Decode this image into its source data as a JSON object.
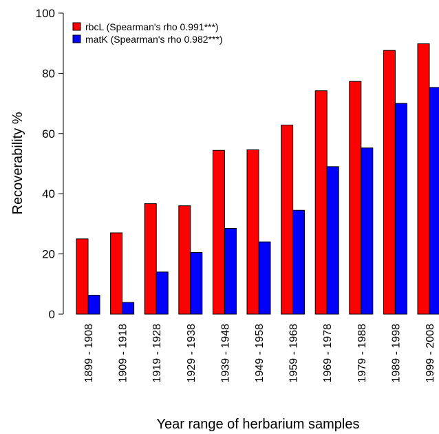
{
  "chart_data": {
    "type": "bar",
    "categories": [
      "1899 - 1908",
      "1909 - 1918",
      "1919 - 1928",
      "1929 - 1938",
      "1939 - 1948",
      "1949 - 1958",
      "1959 - 1968",
      "1969 - 1978",
      "1979 - 1988",
      "1989 - 1998",
      "1999 - 2008"
    ],
    "series": [
      {
        "name": "rbcL (Spearman's rho 0.991***)",
        "color": "#ff0000",
        "values": [
          25,
          27,
          36.7,
          36,
          54.4,
          54.6,
          62.8,
          74.2,
          77.3,
          87.6,
          89.8
        ]
      },
      {
        "name": "matK (Spearman's rho 0.982***)",
        "color": "#0000ff",
        "values": [
          6.3,
          3.9,
          14,
          20.5,
          28.5,
          24,
          34.5,
          49,
          55.2,
          70,
          75.3
        ]
      }
    ],
    "x_label": "Year range of herbarium samples",
    "y_label": "Recoverability %",
    "ylim": [
      0,
      100
    ],
    "yticks": [
      0,
      20,
      40,
      60,
      80,
      100
    ],
    "legend": "top-left"
  }
}
